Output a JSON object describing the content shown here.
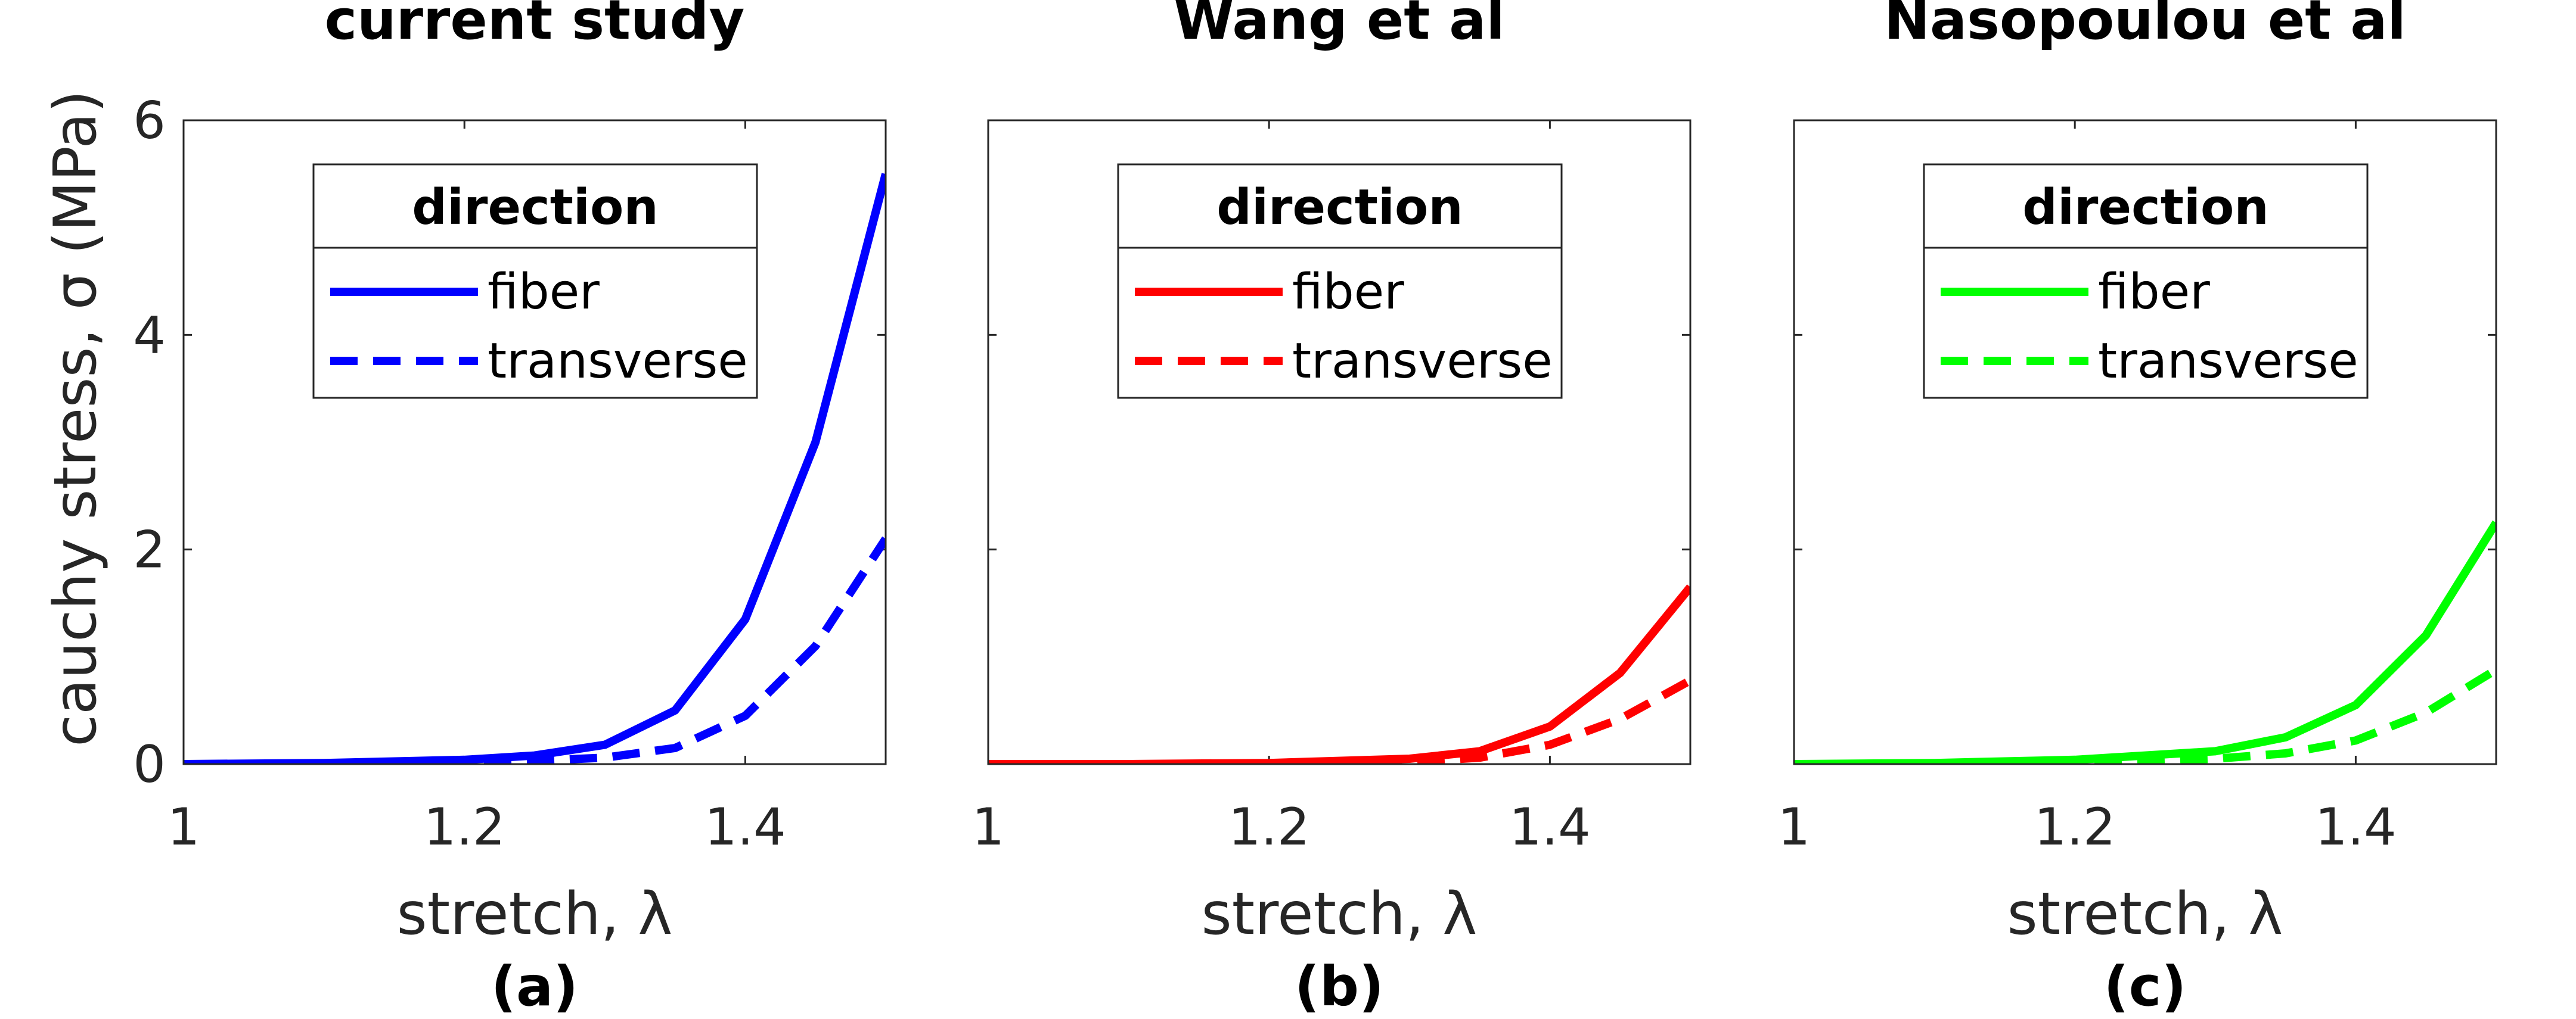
{
  "chart_data": [
    {
      "type": "line",
      "panel_label": "(a)",
      "title": "current study",
      "xlabel": "stretch, λ",
      "ylabel": "cauchy stress, σ (MPa)",
      "xlim": [
        1,
        1.5
      ],
      "ylim": [
        0,
        6
      ],
      "xticks": [
        1,
        1.2,
        1.4
      ],
      "yticks": [
        0,
        2,
        4,
        6
      ],
      "legend_title": "direction",
      "legend_position": "top-left",
      "series": [
        {
          "name": "fiber",
          "color": "#0000ff",
          "dash": "solid",
          "x": [
            1,
            1.1,
            1.2,
            1.25,
            1.3,
            1.35,
            1.4,
            1.45,
            1.5
          ],
          "y": [
            0,
            0.01,
            0.04,
            0.08,
            0.18,
            0.5,
            1.35,
            3.0,
            5.5
          ]
        },
        {
          "name": "transverse",
          "color": "#0000ff",
          "dash": "dashed",
          "x": [
            1,
            1.1,
            1.2,
            1.25,
            1.3,
            1.35,
            1.4,
            1.45,
            1.5
          ],
          "y": [
            0,
            0,
            0.01,
            0.03,
            0.06,
            0.15,
            0.45,
            1.1,
            2.1
          ]
        }
      ]
    },
    {
      "type": "line",
      "panel_label": "(b)",
      "title": "Wang et al",
      "xlabel": "stretch, λ",
      "ylabel": "",
      "xlim": [
        1,
        1.5
      ],
      "ylim": [
        0,
        6
      ],
      "xticks": [
        1,
        1.2,
        1.4
      ],
      "yticks": [],
      "legend_title": "direction",
      "legend_position": "top-left",
      "series": [
        {
          "name": "fiber",
          "color": "#ff0000",
          "dash": "solid",
          "x": [
            1,
            1.1,
            1.2,
            1.3,
            1.35,
            1.4,
            1.45,
            1.5
          ],
          "y": [
            0,
            0,
            0.01,
            0.05,
            0.12,
            0.35,
            0.85,
            1.65
          ]
        },
        {
          "name": "transverse",
          "color": "#ff0000",
          "dash": "dashed",
          "x": [
            1,
            1.1,
            1.2,
            1.3,
            1.35,
            1.4,
            1.45,
            1.5
          ],
          "y": [
            0,
            0,
            0,
            0.02,
            0.06,
            0.18,
            0.42,
            0.78
          ]
        }
      ]
    },
    {
      "type": "line",
      "panel_label": "(c)",
      "title": "Nasopoulou et al",
      "xlabel": "stretch, λ",
      "ylabel": "",
      "xlim": [
        1,
        1.5
      ],
      "ylim": [
        0,
        6
      ],
      "xticks": [
        1,
        1.2,
        1.4
      ],
      "yticks": [],
      "legend_title": "direction",
      "legend_position": "top-left",
      "series": [
        {
          "name": "fiber",
          "color": "#00ff00",
          "dash": "solid",
          "x": [
            1,
            1.1,
            1.2,
            1.3,
            1.35,
            1.4,
            1.45,
            1.5
          ],
          "y": [
            0,
            0.01,
            0.04,
            0.12,
            0.25,
            0.55,
            1.2,
            2.25
          ]
        },
        {
          "name": "transverse",
          "color": "#00ff00",
          "dash": "dashed",
          "x": [
            1,
            1.1,
            1.2,
            1.3,
            1.35,
            1.4,
            1.45,
            1.5
          ],
          "y": [
            0,
            0,
            0.01,
            0.05,
            0.1,
            0.22,
            0.48,
            0.88
          ]
        }
      ]
    }
  ]
}
